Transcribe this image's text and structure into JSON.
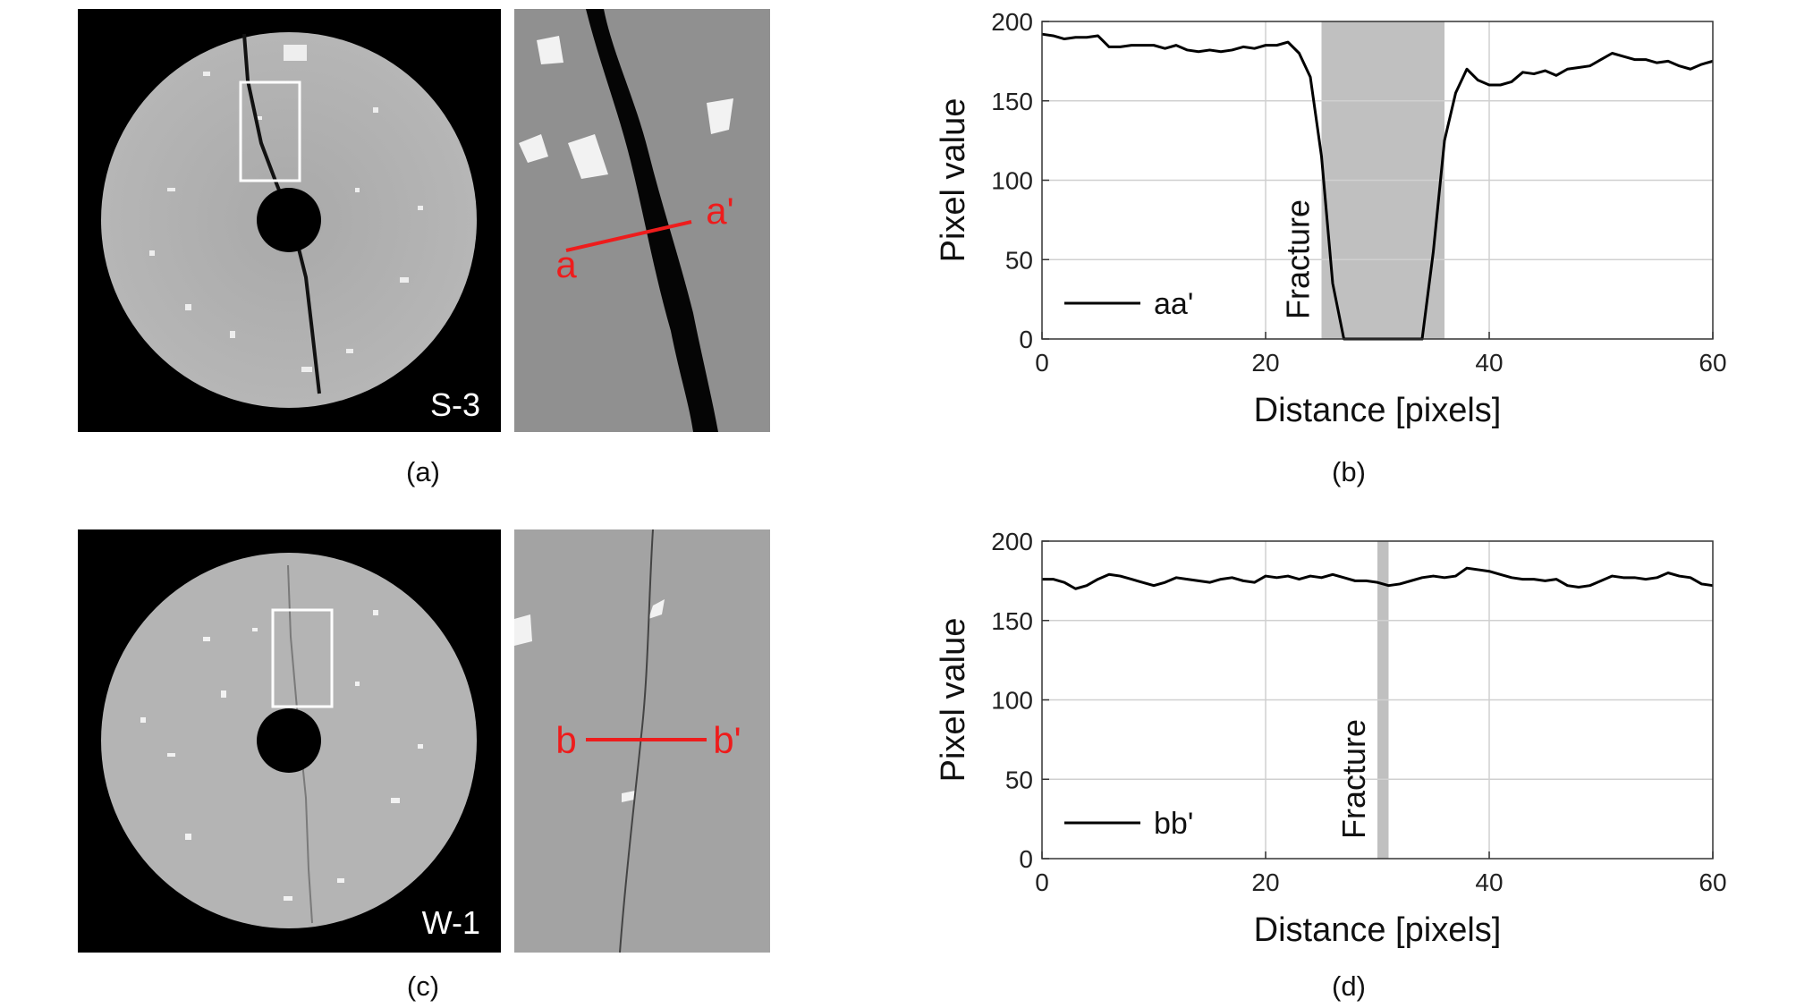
{
  "panels": {
    "a": {
      "caption": "(a)",
      "specimen_label": "S-3",
      "profile_start": "a",
      "profile_end": "a'"
    },
    "b": {
      "caption": "(b)"
    },
    "c": {
      "caption": "(c)",
      "specimen_label": "W-1",
      "profile_start": "b",
      "profile_end": "b'"
    },
    "d": {
      "caption": "(d)"
    }
  },
  "colors": {
    "profile_line": "#ee1c1c",
    "fracture_band": "#c0c0c0",
    "series": "#000000",
    "grid": "#d0d0d0"
  },
  "chart_data": [
    {
      "type": "line",
      "panel": "b",
      "xlabel": "Distance [pixels]",
      "ylabel": "Pixel value",
      "xlim": [
        0,
        60
      ],
      "ylim": [
        0,
        200
      ],
      "xticks": [
        0,
        20,
        40,
        60
      ],
      "yticks": [
        0,
        50,
        100,
        150,
        200
      ],
      "grid": true,
      "legend_position": "bottom-left",
      "fracture_band": {
        "label": "Fracture",
        "x_range": [
          25,
          36
        ]
      },
      "series": [
        {
          "name": "aa'",
          "x": [
            0,
            1,
            2,
            3,
            4,
            5,
            6,
            7,
            8,
            9,
            10,
            11,
            12,
            13,
            14,
            15,
            16,
            17,
            18,
            19,
            20,
            21,
            22,
            23,
            24,
            25,
            26,
            27,
            28,
            29,
            30,
            31,
            32,
            33,
            34,
            35,
            36,
            37,
            38,
            39,
            40,
            41,
            42,
            43,
            44,
            45,
            46,
            47,
            48,
            49,
            50,
            51,
            52,
            53,
            54,
            55,
            56,
            57,
            58,
            59,
            60
          ],
          "y": [
            192,
            191,
            189,
            190,
            190,
            191,
            184,
            184,
            185,
            185,
            185,
            183,
            185,
            182,
            181,
            182,
            181,
            182,
            184,
            183,
            185,
            185,
            187,
            180,
            165,
            115,
            35,
            0,
            0,
            0,
            0,
            0,
            0,
            0,
            0,
            55,
            125,
            155,
            170,
            163,
            160,
            160,
            162,
            168,
            167,
            169,
            166,
            170,
            171,
            172,
            176,
            180,
            178,
            176,
            176,
            174,
            175,
            172,
            170,
            173,
            175
          ]
        }
      ]
    },
    {
      "type": "line",
      "panel": "d",
      "xlabel": "Distance [pixels]",
      "ylabel": "Pixel value",
      "xlim": [
        0,
        60
      ],
      "ylim": [
        0,
        200
      ],
      "xticks": [
        0,
        20,
        40,
        60
      ],
      "yticks": [
        0,
        50,
        100,
        150,
        200
      ],
      "grid": true,
      "legend_position": "bottom-left",
      "fracture_band": {
        "label": "Fracture",
        "x_range": [
          30,
          31
        ]
      },
      "series": [
        {
          "name": "bb'",
          "x": [
            0,
            1,
            2,
            3,
            4,
            5,
            6,
            7,
            8,
            9,
            10,
            11,
            12,
            13,
            14,
            15,
            16,
            17,
            18,
            19,
            20,
            21,
            22,
            23,
            24,
            25,
            26,
            27,
            28,
            29,
            30,
            31,
            32,
            33,
            34,
            35,
            36,
            37,
            38,
            39,
            40,
            41,
            42,
            43,
            44,
            45,
            46,
            47,
            48,
            49,
            50,
            51,
            52,
            53,
            54,
            55,
            56,
            57,
            58,
            59,
            60
          ],
          "y": [
            176,
            176,
            174,
            170,
            172,
            176,
            179,
            178,
            176,
            174,
            172,
            174,
            177,
            176,
            175,
            174,
            176,
            177,
            175,
            174,
            178,
            177,
            178,
            176,
            178,
            177,
            179,
            177,
            175,
            175,
            174,
            172,
            173,
            175,
            177,
            178,
            177,
            178,
            183,
            182,
            181,
            179,
            177,
            176,
            176,
            175,
            176,
            172,
            171,
            172,
            175,
            178,
            177,
            177,
            176,
            177,
            180,
            178,
            177,
            173,
            172
          ]
        }
      ]
    }
  ]
}
